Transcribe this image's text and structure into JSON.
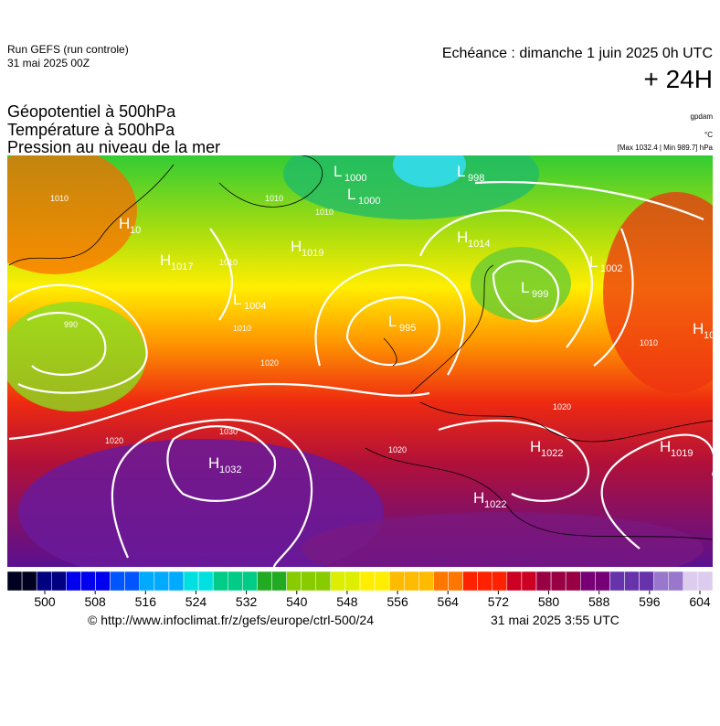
{
  "header": {
    "run": "Run GEFS (run controle)",
    "run_date": "31 mai 2025 00Z",
    "valid": "Echéance : dimanche 1 juin 2025 0h UTC",
    "lead": "+ 24H",
    "fields": [
      "Géopotentiel à 500hPa",
      "Température à 500hPa",
      "Pression au niveau de la mer"
    ],
    "unit_geo": "gpdam",
    "unit_temp": "°C",
    "extremes": "[Max 1032.4 | Min 989.7] hPa"
  },
  "centers": [
    {
      "kind": "L",
      "value": "1000"
    },
    {
      "kind": "L",
      "value": "998"
    },
    {
      "kind": "L",
      "value": "1000"
    },
    {
      "kind": "H",
      "value": "10"
    },
    {
      "kind": "H",
      "value": "1019"
    },
    {
      "kind": "H",
      "value": "1017"
    },
    {
      "kind": "H",
      "value": "1014"
    },
    {
      "kind": "L",
      "value": "1002"
    },
    {
      "kind": "L",
      "value": "1004"
    },
    {
      "kind": "L",
      "value": "999"
    },
    {
      "kind": "L",
      "value": "995"
    },
    {
      "kind": "H",
      "value": "10"
    },
    {
      "kind": "H",
      "value": "1022"
    },
    {
      "kind": "H",
      "value": "1019"
    },
    {
      "kind": "H",
      "value": "1032"
    },
    {
      "kind": "H",
      "value": "1022"
    }
  ],
  "isobar_labels": [
    "1010",
    "1010",
    "1010",
    "1010",
    "990",
    "1020",
    "1030",
    "1020",
    "1010",
    "1020",
    "1020",
    "1010"
  ],
  "colorbar": {
    "ticks": [
      500,
      508,
      516,
      524,
      532,
      540,
      548,
      556,
      564,
      572,
      580,
      588,
      596,
      604
    ]
  },
  "footer": {
    "source": "© http://www.infoclimat.fr/z/gefs/europe/ctrl-500/24",
    "issued": "31 mai 2025  3:55 UTC"
  }
}
